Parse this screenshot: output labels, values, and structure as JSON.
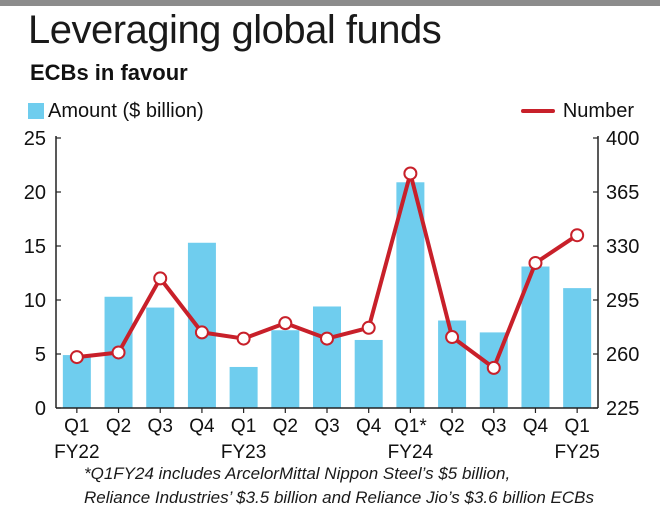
{
  "header": {
    "title": "Leveraging global funds",
    "subtitle": "ECBs in favour"
  },
  "legend": {
    "amount_label": "Amount ($ billion)",
    "number_label": "Number"
  },
  "colors": {
    "bar": "#6fcdee",
    "line": "#c8202a",
    "marker_fill": "#ffffff",
    "axis": "#222222"
  },
  "chart_data": {
    "type": "bar+line",
    "categories": [
      "Q1",
      "Q2",
      "Q3",
      "Q4",
      "Q1",
      "Q2",
      "Q3",
      "Q4",
      "Q1*",
      "Q2",
      "Q3",
      "Q4",
      "Q1"
    ],
    "fiscal_year_labels": [
      {
        "index": 0,
        "label": "FY22"
      },
      {
        "index": 4,
        "label": "FY23"
      },
      {
        "index": 8,
        "label": "FY24"
      },
      {
        "index": 12,
        "label": "FY25"
      }
    ],
    "series": [
      {
        "name": "Amount ($ billion)",
        "type": "bar",
        "axis": "left",
        "values": [
          4.9,
          10.3,
          9.3,
          15.3,
          3.8,
          7.2,
          9.4,
          6.3,
          20.9,
          8.1,
          7.0,
          13.1,
          11.1
        ]
      },
      {
        "name": "Number",
        "type": "line",
        "axis": "right",
        "values": [
          258,
          261,
          309,
          274,
          270,
          280,
          270,
          277,
          377,
          271,
          251,
          319,
          337
        ]
      }
    ],
    "y_left": {
      "min": 0,
      "max": 25,
      "ticks": [
        "0",
        "5",
        "10",
        "15",
        "20",
        "25"
      ]
    },
    "y_right": {
      "min": 225,
      "max": 400,
      "ticks": [
        "225",
        "260",
        "295",
        "330",
        "365",
        "400"
      ]
    },
    "grid": false,
    "legend_placement": "top"
  },
  "footnote": {
    "line1": "*Q1FY24 includes ArcelorMittal Nippon Steel’s $5 billion,",
    "line2": "Reliance Industries’ $3.5 billion and Reliance Jio’s $3.6 billion ECBs"
  }
}
